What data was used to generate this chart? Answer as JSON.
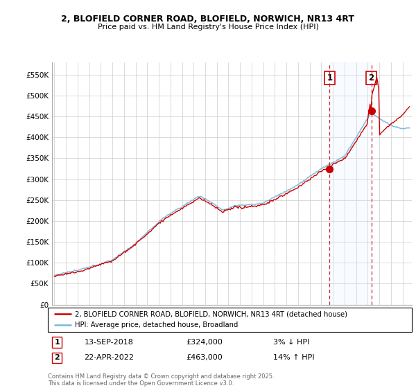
{
  "title_line1": "2, BLOFIELD CORNER ROAD, BLOFIELD, NORWICH, NR13 4RT",
  "title_line2": "Price paid vs. HM Land Registry's House Price Index (HPI)",
  "ylabel_ticks": [
    "£0",
    "£50K",
    "£100K",
    "£150K",
    "£200K",
    "£250K",
    "£300K",
    "£350K",
    "£400K",
    "£450K",
    "£500K",
    "£550K"
  ],
  "ytick_values": [
    0,
    50000,
    100000,
    150000,
    200000,
    250000,
    300000,
    350000,
    400000,
    450000,
    500000,
    550000
  ],
  "ylim": [
    0,
    580000
  ],
  "xlim_start": 1995,
  "xlim_end": 2025.8,
  "xticks": [
    1995,
    1996,
    1997,
    1998,
    1999,
    2000,
    2001,
    2002,
    2003,
    2004,
    2005,
    2006,
    2007,
    2008,
    2009,
    2010,
    2011,
    2012,
    2013,
    2014,
    2015,
    2016,
    2017,
    2018,
    2019,
    2020,
    2021,
    2022,
    2023,
    2024,
    2025
  ],
  "hpi_color": "#7ab8d8",
  "price_color": "#cc0000",
  "shade_color": "#ddeeff",
  "marker_color": "#cc0000",
  "dashed_line_color": "#cc0000",
  "sale1_date": "13-SEP-2018",
  "sale1_price": 324000,
  "sale1_pct": "3% ↓ HPI",
  "sale1_x": 2018.71,
  "sale2_date": "22-APR-2022",
  "sale2_price": 463000,
  "sale2_x": 2022.31,
  "sale2_pct": "14% ↑ HPI",
  "legend_line1": "2, BLOFIELD CORNER ROAD, BLOFIELD, NORWICH, NR13 4RT (detached house)",
  "legend_line2": "HPI: Average price, detached house, Broadland",
  "footnote": "Contains HM Land Registry data © Crown copyright and database right 2025.\nThis data is licensed under the Open Government Licence v3.0.",
  "background_color": "#ffffff",
  "grid_color": "#cccccc"
}
